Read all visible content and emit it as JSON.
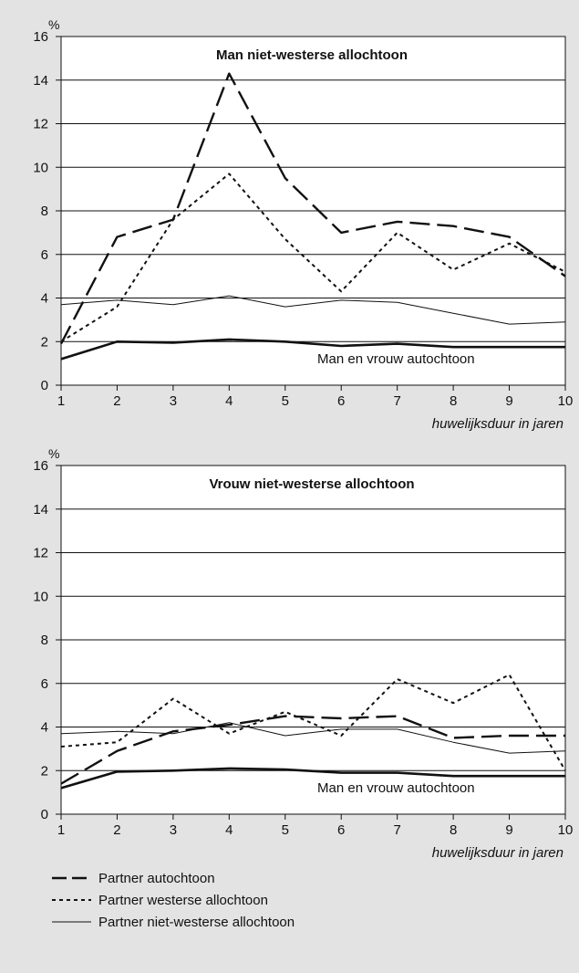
{
  "figure": {
    "legend": [
      {
        "label": "Partner autochtoon",
        "style": "dashed"
      },
      {
        "label": "Partner westerse allochtoon",
        "style": "dotted"
      },
      {
        "label": "Partner niet-westerse allochtoon",
        "style": "thin"
      }
    ]
  },
  "chart_data": [
    {
      "type": "line",
      "title": "Man niet-westerse allochtoon",
      "ylabel": "%",
      "xlabel": "huwelijksduur in jaren",
      "x": [
        1,
        2,
        3,
        4,
        5,
        6,
        7,
        8,
        9,
        10
      ],
      "xlim": [
        1,
        10
      ],
      "ylim": [
        0,
        16
      ],
      "yticks": [
        0,
        2,
        4,
        6,
        8,
        10,
        12,
        14,
        16
      ],
      "grid": true,
      "series": [
        {
          "name": "Partner autochtoon",
          "style": "dashed",
          "values": [
            1.9,
            6.8,
            7.6,
            14.3,
            9.5,
            7.0,
            7.5,
            7.3,
            6.8,
            5.0
          ]
        },
        {
          "name": "Partner westerse allochtoon",
          "style": "dotted",
          "values": [
            2.0,
            3.6,
            7.6,
            9.7,
            6.7,
            4.3,
            7.0,
            5.3,
            6.5,
            5.2
          ]
        },
        {
          "name": "Partner niet-westerse allochtoon",
          "style": "thin",
          "values": [
            3.7,
            3.9,
            3.7,
            4.1,
            3.6,
            3.9,
            3.8,
            3.3,
            2.8,
            2.9
          ]
        },
        {
          "name": "Man en vrouw autochtoon",
          "style": "thick",
          "values": [
            1.2,
            2.0,
            1.95,
            2.1,
            2.0,
            1.8,
            1.9,
            1.75,
            1.75,
            1.75
          ]
        }
      ],
      "annotation": "Man en vrouw autochtoon"
    },
    {
      "type": "line",
      "title": "Vrouw niet-westerse allochtoon",
      "ylabel": "%",
      "xlabel": "huwelijksduur in jaren",
      "x": [
        1,
        2,
        3,
        4,
        5,
        6,
        7,
        8,
        9,
        10
      ],
      "xlim": [
        1,
        10
      ],
      "ylim": [
        0,
        16
      ],
      "yticks": [
        0,
        2,
        4,
        6,
        8,
        10,
        12,
        14,
        16
      ],
      "grid": true,
      "series": [
        {
          "name": "Partner autochtoon",
          "style": "dashed",
          "values": [
            1.4,
            2.9,
            3.8,
            4.1,
            4.5,
            4.4,
            4.5,
            3.5,
            3.6,
            3.6
          ]
        },
        {
          "name": "Partner westerse allochtoon",
          "style": "dotted",
          "values": [
            3.1,
            3.3,
            5.3,
            3.7,
            4.7,
            3.6,
            6.2,
            5.1,
            6.4,
            2.0
          ]
        },
        {
          "name": "Partner niet-westerse allochtoon",
          "style": "thin",
          "values": [
            3.7,
            3.8,
            3.7,
            4.2,
            3.6,
            3.9,
            3.9,
            3.3,
            2.8,
            2.9
          ]
        },
        {
          "name": "Man en vrouw autochtoon",
          "style": "thick",
          "values": [
            1.2,
            1.95,
            2.0,
            2.1,
            2.05,
            1.9,
            1.9,
            1.75,
            1.75,
            1.75
          ]
        }
      ],
      "annotation": "Man en vrouw autochtoon"
    }
  ]
}
